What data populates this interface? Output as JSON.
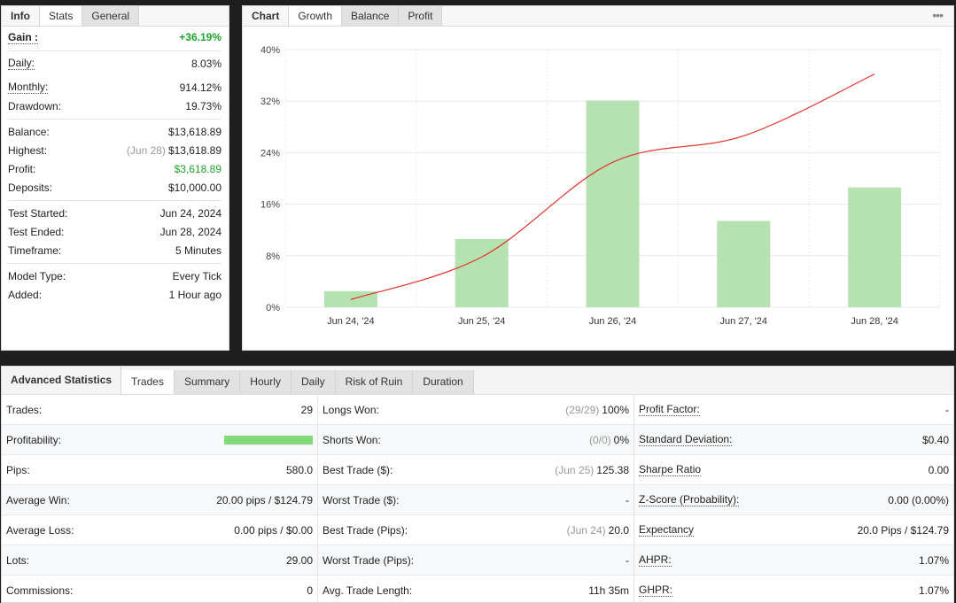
{
  "info": {
    "tabs": [
      "Info",
      "Stats",
      "General"
    ],
    "gain": {
      "label": "Gain :",
      "value": "+36.19%"
    },
    "daily": {
      "label": "Daily:",
      "value": "8.03%"
    },
    "monthly": {
      "label": "Monthly:",
      "value": "914.12%"
    },
    "drawdown": {
      "label": "Drawdown:",
      "value": "19.73%"
    },
    "balance": {
      "label": "Balance:",
      "value": "$13,618.89"
    },
    "highest": {
      "label": "Highest:",
      "note": "(Jun 28)",
      "value": "$13,618.89"
    },
    "profit": {
      "label": "Profit:",
      "value": "$3,618.89"
    },
    "deposits": {
      "label": "Deposits:",
      "value": "$10,000.00"
    },
    "test_started": {
      "label": "Test Started:",
      "value": "Jun 24, 2024"
    },
    "test_ended": {
      "label": "Test Ended:",
      "value": "Jun 28, 2024"
    },
    "timeframe": {
      "label": "Timeframe:",
      "value": "5 Minutes"
    },
    "model_type": {
      "label": "Model Type:",
      "value": "Every Tick"
    },
    "added": {
      "label": "Added:",
      "value": "1 Hour ago"
    }
  },
  "chart_panel": {
    "tabs": [
      "Chart",
      "Growth",
      "Balance",
      "Profit"
    ],
    "more_icon": "more-horizontal-icon"
  },
  "chart_data": {
    "type": "bar",
    "categories": [
      "Jun 24, '24",
      "Jun 25, '24",
      "Jun 26, '24",
      "Jun 27, '24",
      "Jun 28, '24"
    ],
    "series": [
      {
        "type": "bar",
        "values": [
          2.5,
          10.6,
          32.1,
          13.4,
          18.6
        ],
        "color": "#b6e2b2"
      },
      {
        "type": "line",
        "values": [
          1.2,
          7.8,
          22.5,
          26.6,
          36.2
        ],
        "color": "#e0332a"
      }
    ],
    "yticks": [
      "0%",
      "8%",
      "16%",
      "24%",
      "32%",
      "40%"
    ],
    "ylim": [
      0,
      40
    ],
    "grid": true
  },
  "advanced": {
    "title": "Advanced Statistics",
    "tabs": [
      "Trades",
      "Summary",
      "Hourly",
      "Daily",
      "Risk of Ruin",
      "Duration"
    ],
    "col1": [
      {
        "label": "Trades:",
        "value": "29"
      },
      {
        "label": "Profitability:",
        "bar": 1.0
      },
      {
        "label": "Pips:",
        "value": "580.0"
      },
      {
        "label": "Average Win:",
        "value": "20.00 pips / $124.79"
      },
      {
        "label": "Average Loss:",
        "value": "0.00 pips / $0.00"
      },
      {
        "label": "Lots:",
        "value": "29.00"
      },
      {
        "label": "Commissions:",
        "value": "0"
      }
    ],
    "col2": [
      {
        "label": "Longs Won:",
        "note": "(29/29)",
        "value": "100%"
      },
      {
        "label": "Shorts Won:",
        "note": "(0/0)",
        "value": "0%"
      },
      {
        "label": "Best Trade ($):",
        "note": "(Jun 25)",
        "value": "125.38"
      },
      {
        "label": "Worst Trade ($):",
        "value": "-"
      },
      {
        "label": "Best Trade (Pips):",
        "note": "(Jun 24)",
        "value": "20.0"
      },
      {
        "label": "Worst Trade (Pips):",
        "value": "-"
      },
      {
        "label": "Avg. Trade Length:",
        "value": "11h 35m"
      }
    ],
    "col3": [
      {
        "label": "Profit Factor:",
        "value": "-"
      },
      {
        "label": "Standard Deviation:",
        "value": "$0.40"
      },
      {
        "label": "Sharpe Ratio",
        "value": "0.00"
      },
      {
        "label": "Z-Score (Probability):",
        "value": "0.00 (0.00%)"
      },
      {
        "label": "Expectancy",
        "value": "20.0 Pips / $124.79"
      },
      {
        "label": "AHPR:",
        "value": "1.07%"
      },
      {
        "label": "GHPR:",
        "value": "1.07%"
      }
    ]
  }
}
